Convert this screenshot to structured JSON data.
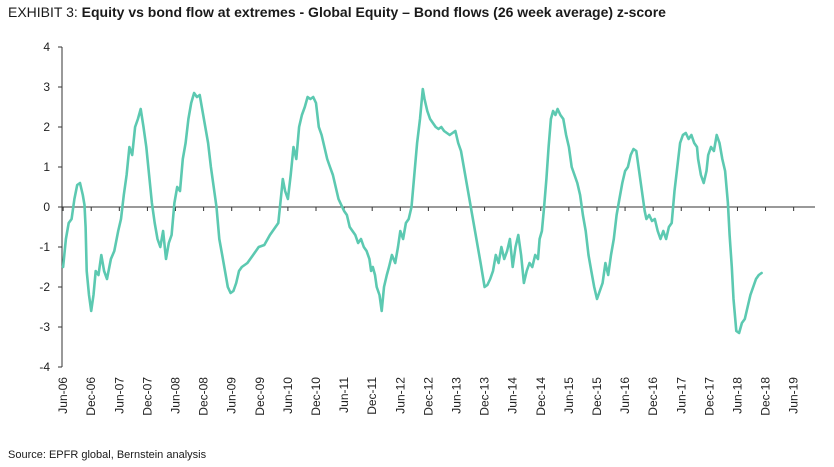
{
  "header": {
    "exhibit_label": "EXHIBIT 3:",
    "title": "Equity vs bond flow at extremes - Global Equity – Bond flows (26 week average) z-score"
  },
  "footer": {
    "source": "Source: EPFR global, Bernstein analysis"
  },
  "chart_data": {
    "type": "line",
    "title": "Equity vs bond flow at extremes - Global Equity – Bond flows (26 week average) z-score",
    "xlabel": "",
    "ylabel": "",
    "ylim": [
      -4,
      4
    ],
    "yticks": [
      4,
      3,
      2,
      1,
      0,
      -1,
      -2,
      -3,
      -4
    ],
    "xlim": [
      2006.4,
      2019.8
    ],
    "xticks": [
      {
        "label": "Jun-06",
        "t": 2006.42
      },
      {
        "label": "Dec-06",
        "t": 2006.92
      },
      {
        "label": "Jun-07",
        "t": 2007.42
      },
      {
        "label": "Dec-07",
        "t": 2007.92
      },
      {
        "label": "Jun-08",
        "t": 2008.42
      },
      {
        "label": "Dec-08",
        "t": 2008.92
      },
      {
        "label": "Jun-09",
        "t": 2009.42
      },
      {
        "label": "Dec-09",
        "t": 2009.92
      },
      {
        "label": "Jun-10",
        "t": 2010.42
      },
      {
        "label": "Dec-10",
        "t": 2010.92
      },
      {
        "label": "Jun-11",
        "t": 2011.42
      },
      {
        "label": "Dec-11",
        "t": 2011.92
      },
      {
        "label": "Jun-12",
        "t": 2012.42
      },
      {
        "label": "Dec-12",
        "t": 2012.92
      },
      {
        "label": "Jun-13",
        "t": 2013.42
      },
      {
        "label": "Dec-13",
        "t": 2013.92
      },
      {
        "label": "Jun-14",
        "t": 2014.42
      },
      {
        "label": "Dec-14",
        "t": 2014.92
      },
      {
        "label": "Jun-15",
        "t": 2015.42
      },
      {
        "label": "Dec-15",
        "t": 2015.92
      },
      {
        "label": "Jun-16",
        "t": 2016.42
      },
      {
        "label": "Dec-16",
        "t": 2016.92
      },
      {
        "label": "Jun-17",
        "t": 2017.42
      },
      {
        "label": "Dec-17",
        "t": 2017.92
      },
      {
        "label": "Jun-18",
        "t": 2018.42
      },
      {
        "label": "Dec-18",
        "t": 2018.92
      },
      {
        "label": "Jun-19",
        "t": 2019.42
      }
    ],
    "grid": false,
    "line_color": "#5cc9b1",
    "axis_color": "#333333",
    "series": [
      {
        "points": [
          [
            2006.42,
            -1.5
          ],
          [
            2006.47,
            -0.8
          ],
          [
            2006.52,
            -0.4
          ],
          [
            2006.57,
            -0.3
          ],
          [
            2006.62,
            0.2
          ],
          [
            2006.67,
            0.55
          ],
          [
            2006.72,
            0.6
          ],
          [
            2006.77,
            0.3
          ],
          [
            2006.8,
            0.05
          ],
          [
            2006.82,
            -0.5
          ],
          [
            2006.84,
            -1.6
          ],
          [
            2006.88,
            -2.2
          ],
          [
            2006.92,
            -2.6
          ],
          [
            2006.96,
            -2.2
          ],
          [
            2007.0,
            -1.6
          ],
          [
            2007.05,
            -1.7
          ],
          [
            2007.1,
            -1.2
          ],
          [
            2007.15,
            -1.6
          ],
          [
            2007.2,
            -1.8
          ],
          [
            2007.27,
            -1.3
          ],
          [
            2007.33,
            -1.1
          ],
          [
            2007.4,
            -0.6
          ],
          [
            2007.45,
            -0.3
          ],
          [
            2007.5,
            0.3
          ],
          [
            2007.55,
            0.8
          ],
          [
            2007.6,
            1.5
          ],
          [
            2007.65,
            1.3
          ],
          [
            2007.7,
            2.0
          ],
          [
            2007.75,
            2.2
          ],
          [
            2007.8,
            2.45
          ],
          [
            2007.85,
            2.0
          ],
          [
            2007.9,
            1.5
          ],
          [
            2007.95,
            0.8
          ],
          [
            2008.0,
            0.1
          ],
          [
            2008.05,
            -0.4
          ],
          [
            2008.1,
            -0.8
          ],
          [
            2008.15,
            -1.0
          ],
          [
            2008.2,
            -0.6
          ],
          [
            2008.25,
            -1.3
          ],
          [
            2008.3,
            -0.9
          ],
          [
            2008.35,
            -0.7
          ],
          [
            2008.4,
            0.1
          ],
          [
            2008.45,
            0.5
          ],
          [
            2008.5,
            0.4
          ],
          [
            2008.55,
            1.2
          ],
          [
            2008.6,
            1.6
          ],
          [
            2008.65,
            2.2
          ],
          [
            2008.7,
            2.6
          ],
          [
            2008.75,
            2.85
          ],
          [
            2008.8,
            2.75
          ],
          [
            2008.85,
            2.8
          ],
          [
            2008.9,
            2.4
          ],
          [
            2008.95,
            2.0
          ],
          [
            2009.0,
            1.6
          ],
          [
            2009.05,
            1.0
          ],
          [
            2009.1,
            0.5
          ],
          [
            2009.15,
            0.0
          ],
          [
            2009.2,
            -0.8
          ],
          [
            2009.25,
            -1.2
          ],
          [
            2009.3,
            -1.6
          ],
          [
            2009.35,
            -2.0
          ],
          [
            2009.4,
            -2.15
          ],
          [
            2009.45,
            -2.1
          ],
          [
            2009.5,
            -1.9
          ],
          [
            2009.55,
            -1.6
          ],
          [
            2009.6,
            -1.5
          ],
          [
            2009.7,
            -1.4
          ],
          [
            2009.8,
            -1.2
          ],
          [
            2009.9,
            -1.0
          ],
          [
            2010.0,
            -0.95
          ],
          [
            2010.1,
            -0.7
          ],
          [
            2010.2,
            -0.5
          ],
          [
            2010.25,
            -0.4
          ],
          [
            2010.3,
            0.3
          ],
          [
            2010.33,
            0.7
          ],
          [
            2010.37,
            0.4
          ],
          [
            2010.42,
            0.2
          ],
          [
            2010.47,
            0.8
          ],
          [
            2010.52,
            1.5
          ],
          [
            2010.57,
            1.2
          ],
          [
            2010.62,
            2.0
          ],
          [
            2010.67,
            2.3
          ],
          [
            2010.72,
            2.5
          ],
          [
            2010.77,
            2.75
          ],
          [
            2010.82,
            2.7
          ],
          [
            2010.87,
            2.75
          ],
          [
            2010.92,
            2.6
          ],
          [
            2010.97,
            2.0
          ],
          [
            2011.02,
            1.8
          ],
          [
            2011.07,
            1.5
          ],
          [
            2011.12,
            1.2
          ],
          [
            2011.17,
            1.0
          ],
          [
            2011.22,
            0.8
          ],
          [
            2011.27,
            0.5
          ],
          [
            2011.32,
            0.2
          ],
          [
            2011.37,
            0.05
          ],
          [
            2011.42,
            -0.1
          ],
          [
            2011.47,
            -0.2
          ],
          [
            2011.52,
            -0.5
          ],
          [
            2011.57,
            -0.6
          ],
          [
            2011.62,
            -0.7
          ],
          [
            2011.67,
            -0.9
          ],
          [
            2011.72,
            -0.8
          ],
          [
            2011.77,
            -1.0
          ],
          [
            2011.82,
            -1.1
          ],
          [
            2011.87,
            -1.3
          ],
          [
            2011.9,
            -1.6
          ],
          [
            2011.93,
            -1.5
          ],
          [
            2011.97,
            -1.7
          ],
          [
            2012.0,
            -2.0
          ],
          [
            2012.05,
            -2.2
          ],
          [
            2012.09,
            -2.6
          ],
          [
            2012.13,
            -2.0
          ],
          [
            2012.18,
            -1.7
          ],
          [
            2012.22,
            -1.5
          ],
          [
            2012.27,
            -1.2
          ],
          [
            2012.33,
            -1.4
          ],
          [
            2012.38,
            -1.0
          ],
          [
            2012.42,
            -0.6
          ],
          [
            2012.47,
            -0.8
          ],
          [
            2012.52,
            -0.4
          ],
          [
            2012.57,
            -0.3
          ],
          [
            2012.62,
            0.0
          ],
          [
            2012.67,
            0.8
          ],
          [
            2012.72,
            1.6
          ],
          [
            2012.77,
            2.2
          ],
          [
            2012.82,
            2.95
          ],
          [
            2012.85,
            2.7
          ],
          [
            2012.9,
            2.4
          ],
          [
            2012.95,
            2.2
          ],
          [
            2013.0,
            2.1
          ],
          [
            2013.05,
            2.0
          ],
          [
            2013.1,
            1.95
          ],
          [
            2013.15,
            2.0
          ],
          [
            2013.2,
            1.9
          ],
          [
            2013.3,
            1.8
          ],
          [
            2013.35,
            1.85
          ],
          [
            2013.4,
            1.9
          ],
          [
            2013.45,
            1.6
          ],
          [
            2013.5,
            1.4
          ],
          [
            2013.55,
            1.0
          ],
          [
            2013.6,
            0.6
          ],
          [
            2013.65,
            0.2
          ],
          [
            2013.7,
            -0.2
          ],
          [
            2013.75,
            -0.6
          ],
          [
            2013.8,
            -1.0
          ],
          [
            2013.85,
            -1.4
          ],
          [
            2013.92,
            -2.0
          ],
          [
            2013.97,
            -1.95
          ],
          [
            2014.02,
            -1.8
          ],
          [
            2014.07,
            -1.6
          ],
          [
            2014.12,
            -1.2
          ],
          [
            2014.17,
            -1.4
          ],
          [
            2014.22,
            -1.0
          ],
          [
            2014.27,
            -1.3
          ],
          [
            2014.32,
            -1.1
          ],
          [
            2014.37,
            -0.8
          ],
          [
            2014.42,
            -1.5
          ],
          [
            2014.47,
            -1.0
          ],
          [
            2014.52,
            -0.7
          ],
          [
            2014.57,
            -1.2
          ],
          [
            2014.62,
            -1.9
          ],
          [
            2014.67,
            -1.6
          ],
          [
            2014.72,
            -1.4
          ],
          [
            2014.77,
            -1.5
          ],
          [
            2014.82,
            -1.2
          ],
          [
            2014.87,
            -1.3
          ],
          [
            2014.9,
            -0.8
          ],
          [
            2014.94,
            -0.6
          ],
          [
            2014.98,
            0.0
          ],
          [
            2015.02,
            0.7
          ],
          [
            2015.06,
            1.5
          ],
          [
            2015.1,
            2.2
          ],
          [
            2015.14,
            2.4
          ],
          [
            2015.18,
            2.3
          ],
          [
            2015.22,
            2.45
          ],
          [
            2015.27,
            2.3
          ],
          [
            2015.32,
            2.2
          ],
          [
            2015.37,
            1.8
          ],
          [
            2015.42,
            1.5
          ],
          [
            2015.47,
            1.0
          ],
          [
            2015.52,
            0.8
          ],
          [
            2015.57,
            0.6
          ],
          [
            2015.62,
            0.3
          ],
          [
            2015.67,
            -0.2
          ],
          [
            2015.72,
            -0.6
          ],
          [
            2015.77,
            -1.2
          ],
          [
            2015.82,
            -1.6
          ],
          [
            2015.87,
            -2.0
          ],
          [
            2015.92,
            -2.3
          ],
          [
            2015.97,
            -2.1
          ],
          [
            2016.02,
            -1.9
          ],
          [
            2016.07,
            -1.4
          ],
          [
            2016.12,
            -1.7
          ],
          [
            2016.17,
            -1.2
          ],
          [
            2016.22,
            -0.8
          ],
          [
            2016.27,
            -0.2
          ],
          [
            2016.32,
            0.2
          ],
          [
            2016.37,
            0.6
          ],
          [
            2016.42,
            0.9
          ],
          [
            2016.47,
            1.0
          ],
          [
            2016.52,
            1.3
          ],
          [
            2016.57,
            1.45
          ],
          [
            2016.62,
            1.4
          ],
          [
            2016.67,
            0.9
          ],
          [
            2016.72,
            0.4
          ],
          [
            2016.77,
            -0.1
          ],
          [
            2016.8,
            -0.3
          ],
          [
            2016.85,
            -0.2
          ],
          [
            2016.9,
            -0.35
          ],
          [
            2016.95,
            -0.3
          ],
          [
            2017.0,
            -0.6
          ],
          [
            2017.05,
            -0.8
          ],
          [
            2017.1,
            -0.6
          ],
          [
            2017.15,
            -0.8
          ],
          [
            2017.2,
            -0.5
          ],
          [
            2017.25,
            -0.4
          ],
          [
            2017.3,
            0.4
          ],
          [
            2017.35,
            1.0
          ],
          [
            2017.4,
            1.6
          ],
          [
            2017.45,
            1.8
          ],
          [
            2017.5,
            1.85
          ],
          [
            2017.55,
            1.7
          ],
          [
            2017.6,
            1.8
          ],
          [
            2017.65,
            1.6
          ],
          [
            2017.7,
            1.5
          ],
          [
            2017.72,
            1.2
          ],
          [
            2017.77,
            0.8
          ],
          [
            2017.82,
            0.6
          ],
          [
            2017.87,
            0.9
          ],
          [
            2017.9,
            1.3
          ],
          [
            2017.95,
            1.5
          ],
          [
            2018.0,
            1.4
          ],
          [
            2018.05,
            1.8
          ],
          [
            2018.1,
            1.6
          ],
          [
            2018.15,
            1.2
          ],
          [
            2018.2,
            0.9
          ],
          [
            2018.25,
            0.1
          ],
          [
            2018.28,
            -0.7
          ],
          [
            2018.32,
            -1.5
          ],
          [
            2018.35,
            -2.3
          ],
          [
            2018.4,
            -3.1
          ],
          [
            2018.45,
            -3.15
          ],
          [
            2018.5,
            -2.9
          ],
          [
            2018.55,
            -2.8
          ],
          [
            2018.6,
            -2.5
          ],
          [
            2018.65,
            -2.2
          ],
          [
            2018.7,
            -2.0
          ],
          [
            2018.75,
            -1.8
          ],
          [
            2018.8,
            -1.7
          ],
          [
            2018.85,
            -1.65
          ]
        ]
      }
    ]
  }
}
